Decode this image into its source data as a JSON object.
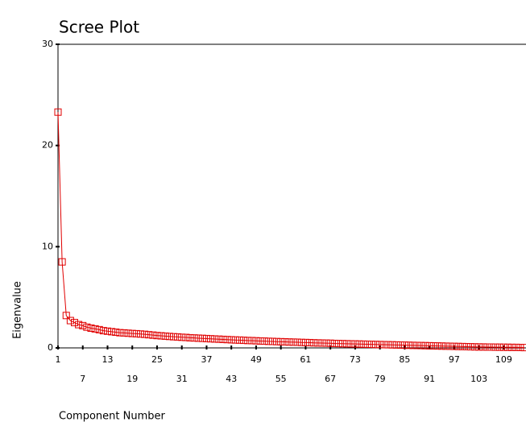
{
  "chart_data": {
    "type": "line",
    "title": "Scree Plot",
    "x_label": "Component Number",
    "y_label": "Eigenvalue",
    "color": "#e00000",
    "marker": "square",
    "x": [
      1,
      2,
      3,
      4,
      5,
      6,
      7,
      8,
      9,
      10,
      11,
      12,
      13,
      14,
      15,
      16,
      17,
      18,
      19,
      20,
      21,
      22,
      23,
      24,
      25,
      26,
      27,
      28,
      29,
      30,
      31,
      32,
      33,
      34,
      35,
      36,
      37,
      38,
      39,
      40,
      41,
      42,
      43,
      44,
      45,
      46,
      47,
      48,
      49,
      50,
      51,
      52,
      53,
      54,
      55,
      56,
      57,
      58,
      59,
      60,
      61,
      62,
      63,
      64,
      65,
      66,
      67,
      68,
      69,
      70,
      71,
      72,
      73,
      74,
      75,
      76,
      77,
      78,
      79,
      80,
      81,
      82,
      83,
      84,
      85,
      86,
      87,
      88,
      89,
      90,
      91,
      92,
      93,
      94,
      95,
      96,
      97,
      98,
      99,
      100,
      101,
      102,
      103,
      104,
      105,
      106,
      107,
      108,
      109,
      110,
      111,
      112,
      113,
      114
    ],
    "values": [
      23.3,
      8.5,
      3.2,
      2.7,
      2.5,
      2.3,
      2.2,
      2.05,
      1.95,
      1.88,
      1.8,
      1.7,
      1.65,
      1.6,
      1.55,
      1.5,
      1.48,
      1.45,
      1.42,
      1.4,
      1.37,
      1.34,
      1.3,
      1.26,
      1.22,
      1.19,
      1.16,
      1.13,
      1.1,
      1.08,
      1.05,
      1.03,
      1.0,
      0.98,
      0.96,
      0.94,
      0.92,
      0.9,
      0.88,
      0.86,
      0.84,
      0.82,
      0.8,
      0.78,
      0.77,
      0.75,
      0.73,
      0.72,
      0.7,
      0.68,
      0.67,
      0.65,
      0.64,
      0.62,
      0.61,
      0.6,
      0.58,
      0.57,
      0.56,
      0.54,
      0.53,
      0.52,
      0.5,
      0.49,
      0.48,
      0.47,
      0.46,
      0.44,
      0.43,
      0.42,
      0.41,
      0.4,
      0.39,
      0.38,
      0.37,
      0.36,
      0.35,
      0.34,
      0.33,
      0.32,
      0.31,
      0.3,
      0.29,
      0.28,
      0.27,
      0.26,
      0.25,
      0.24,
      0.23,
      0.22,
      0.21,
      0.2,
      0.19,
      0.18,
      0.17,
      0.16,
      0.15,
      0.14,
      0.13,
      0.12,
      0.11,
      0.1,
      0.09,
      0.09,
      0.08,
      0.08,
      0.07,
      0.07,
      0.06,
      0.06,
      0.05,
      0.05,
      0.04,
      0.03
    ],
    "xlim": [
      1,
      114
    ],
    "xticks": [
      1,
      7,
      13,
      19,
      25,
      31,
      37,
      43,
      49,
      55,
      61,
      67,
      73,
      79,
      85,
      91,
      97,
      103,
      109
    ],
    "ylim": [
      0,
      30
    ],
    "yticks": [
      0,
      10,
      20,
      30
    ]
  }
}
